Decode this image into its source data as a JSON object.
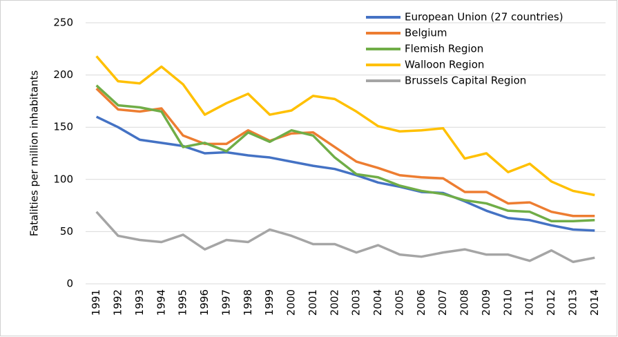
{
  "chart_data": {
    "type": "line",
    "y_label": "Fatalities per million inhabitants",
    "categories": [
      "1991",
      "1992",
      "1993",
      "1994",
      "1995",
      "1996",
      "1997",
      "1998",
      "1999",
      "2000",
      "2001",
      "2002",
      "2003",
      "2004",
      "2005",
      "2006",
      "2007",
      "2008",
      "2009",
      "2010",
      "2011",
      "2012",
      "2013",
      "2014"
    ],
    "series": [
      {
        "name": "European Union (27 countries)",
        "color": "#4472c4",
        "values": [
          160,
          150,
          138,
          135,
          132,
          125,
          126,
          123,
          121,
          117,
          113,
          110,
          104,
          97,
          93,
          88,
          87,
          79,
          70,
          63,
          61,
          56,
          52,
          51
        ]
      },
      {
        "name": "Belgium",
        "color": "#ed7d31",
        "values": [
          187,
          167,
          165,
          168,
          142,
          134,
          134,
          147,
          137,
          144,
          145,
          131,
          117,
          111,
          104,
          102,
          101,
          88,
          88,
          77,
          78,
          69,
          65,
          65
        ]
      },
      {
        "name": "Flemish Region",
        "color": "#70ad47",
        "values": [
          190,
          171,
          169,
          165,
          131,
          135,
          127,
          145,
          136,
          147,
          142,
          121,
          105,
          102,
          94,
          89,
          86,
          80,
          77,
          70,
          69,
          60,
          60,
          61
        ]
      },
      {
        "name": "Walloon Region",
        "color": "#ffc000",
        "values": [
          218,
          194,
          192,
          208,
          191,
          162,
          173,
          182,
          162,
          166,
          180,
          177,
          165,
          151,
          146,
          147,
          149,
          120,
          125,
          107,
          115,
          98,
          89,
          85
        ]
      },
      {
        "name": "Brussels Capital Region",
        "color": "#a5a5a5",
        "values": [
          69,
          46,
          42,
          40,
          47,
          33,
          42,
          40,
          52,
          46,
          38,
          38,
          30,
          37,
          28,
          26,
          30,
          33,
          28,
          28,
          22,
          32,
          21,
          25
        ]
      }
    ],
    "ylim": [
      0,
      250
    ],
    "yticks": [
      0,
      50,
      100,
      150,
      200,
      250
    ],
    "grid": true,
    "legend": "top-right"
  }
}
